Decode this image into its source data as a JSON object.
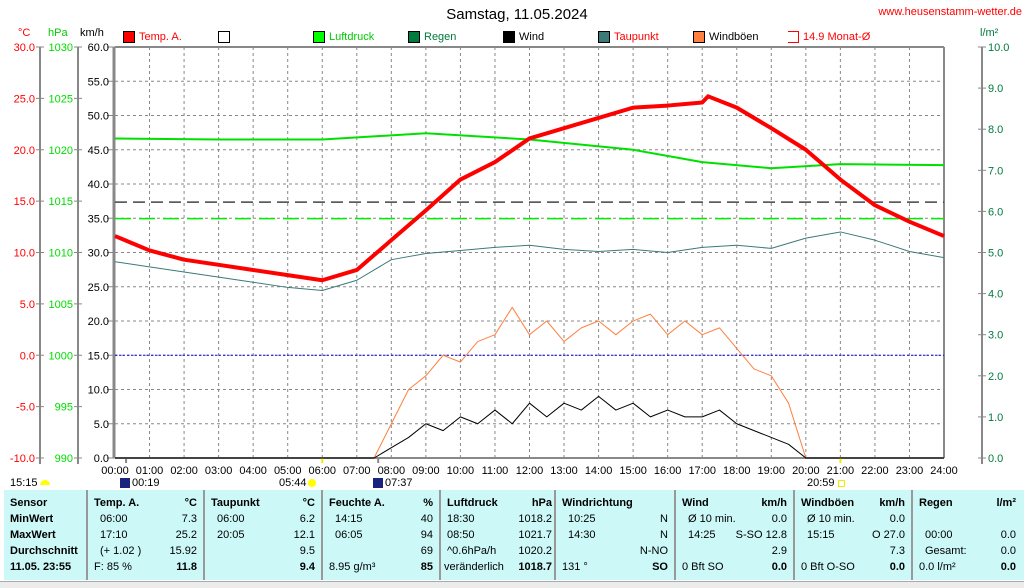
{
  "title": "Samstag, 11.05.2024",
  "site": "www.heusenstamm-wetter.de",
  "units": {
    "temp": "°C",
    "pressure": "hPa",
    "wind": "km/h",
    "rain": "l/m²"
  },
  "legend": [
    {
      "label": "Temp. A.",
      "color": "#ff0000",
      "text_color": "#ff0000"
    },
    {
      "label": "",
      "color": "#ffffff",
      "text_color": "#000000"
    },
    {
      "label": "Luftdruck",
      "color": "#00ff00",
      "text_color": "#00cc00"
    },
    {
      "label": "Regen",
      "color": "#007a3d",
      "text_color": "#007a3d"
    },
    {
      "label": "Wind",
      "color": "#000000",
      "text_color": "#000000"
    },
    {
      "label": "Taupunkt",
      "color": "#3c7a78",
      "text_color": "#ff0000"
    },
    {
      "label": "Windböen",
      "color": "#ff8040",
      "text_color": "#000000"
    },
    {
      "label": "14.9 Monat-Ø",
      "color": "#ff0000",
      "text_color": "#ff0000"
    }
  ],
  "astro": {
    "now": "15:15",
    "moon1": "00:19",
    "sunrise": "05:44",
    "moon2": "07:37",
    "sunset": "20:59"
  },
  "chart_data": {
    "type": "line",
    "x_ticks": [
      "00:00",
      "01:00",
      "02:00",
      "03:00",
      "04:00",
      "05:00",
      "06:00",
      "07:00",
      "08:00",
      "09:00",
      "10:00",
      "11:00",
      "12:00",
      "13:00",
      "14:00",
      "15:00",
      "16:00",
      "17:00",
      "18:00",
      "19:00",
      "20:00",
      "21:00",
      "22:00",
      "23:00",
      "24:00"
    ],
    "axes": {
      "temp": {
        "ylim": [
          -10,
          30
        ],
        "ticks": [
          "30.0",
          "25.0",
          "20.0",
          "15.0",
          "10.0",
          "5.0",
          "0.0",
          "-5.0",
          "-10.0"
        ]
      },
      "pressure": {
        "ylim": [
          990,
          1030
        ],
        "ticks": [
          "1030",
          "1025",
          "1020",
          "1015",
          "1010",
          "1005",
          "1000",
          "995",
          "990"
        ]
      },
      "wind": {
        "ylim": [
          0,
          60
        ],
        "ticks": [
          "60.0",
          "55.0",
          "50.0",
          "45.0",
          "40.0",
          "35.0",
          "30.0",
          "25.0",
          "20.0",
          "15.0",
          "10.0",
          "5.0",
          "0.0"
        ]
      },
      "rain": {
        "ylim": [
          0,
          10
        ],
        "ticks": [
          "10.0",
          "9.0",
          "8.0",
          "7.0",
          "6.0",
          "5.0",
          "4.0",
          "3.0",
          "2.0",
          "1.0",
          "0.0"
        ]
      }
    },
    "grid": true,
    "monthly_avg_temp": 14.9,
    "reference_pressure": 1013.3,
    "series": [
      {
        "name": "Temp. A.",
        "axis": "temp",
        "color": "#ff0000",
        "hours": [
          0,
          1,
          2,
          3,
          4,
          5,
          6,
          7,
          8,
          9,
          10,
          11,
          12,
          13,
          14,
          15,
          16,
          17,
          17.17,
          18,
          19,
          20,
          21,
          22,
          23,
          24
        ],
        "values": [
          11.6,
          10.2,
          9.3,
          8.8,
          8.3,
          7.8,
          7.3,
          8.3,
          11.2,
          14.1,
          17.1,
          18.8,
          21.1,
          22.1,
          23.1,
          24.1,
          24.3,
          24.6,
          25.2,
          24.1,
          22.1,
          20.0,
          17.1,
          14.6,
          13.0,
          11.6
        ]
      },
      {
        "name": "Taupunkt",
        "axis": "temp",
        "color": "#3c7a78",
        "hours": [
          0,
          1,
          2,
          3,
          4,
          5,
          6,
          7,
          8,
          9,
          10,
          11,
          12,
          13,
          14,
          15,
          16,
          17,
          18,
          19,
          20,
          21,
          22,
          23,
          24
        ],
        "values": [
          9.1,
          8.6,
          8.1,
          7.6,
          7.1,
          6.6,
          6.3,
          7.3,
          9.3,
          9.9,
          10.2,
          10.5,
          10.7,
          10.3,
          10.1,
          10.3,
          10.0,
          10.5,
          10.7,
          10.4,
          11.4,
          12.0,
          11.2,
          10.1,
          9.5
        ]
      },
      {
        "name": "Luftdruck",
        "axis": "pressure",
        "color": "#00e000",
        "hours": [
          0,
          3,
          6,
          9,
          12,
          15,
          17,
          19,
          21,
          24
        ],
        "values": [
          1021.1,
          1021.0,
          1021.0,
          1021.6,
          1021.0,
          1020.0,
          1018.8,
          1018.2,
          1018.6,
          1018.5
        ]
      },
      {
        "name": "Wind",
        "axis": "wind",
        "color": "#000000",
        "hours": [
          0,
          7.5,
          8,
          8.5,
          9,
          9.5,
          10,
          10.5,
          11,
          11.5,
          12,
          12.5,
          13,
          13.5,
          14,
          14.5,
          15,
          15.5,
          16,
          16.5,
          17,
          17.5,
          18,
          18.5,
          19,
          19.5,
          20,
          24
        ],
        "values": [
          0,
          0,
          1.5,
          3,
          5,
          4,
          6,
          5,
          7,
          5,
          8,
          6,
          8,
          7,
          9,
          7,
          8,
          6,
          7,
          6,
          6,
          7,
          5,
          4,
          3,
          2,
          0,
          0
        ]
      },
      {
        "name": "Windböen",
        "axis": "wind",
        "color": "#ff8040",
        "hours": [
          0,
          7.5,
          8,
          8.5,
          9,
          9.5,
          10,
          10.5,
          11,
          11.5,
          12,
          12.5,
          13,
          13.5,
          14,
          14.5,
          15,
          15.5,
          16,
          16.5,
          17,
          17.5,
          18,
          18.5,
          19,
          19.5,
          20,
          24
        ],
        "values": [
          0,
          0,
          5,
          10,
          12,
          15,
          14,
          17,
          18,
          22,
          18,
          20,
          17,
          19,
          20,
          18,
          20,
          21,
          18,
          20,
          18,
          19,
          16,
          13,
          12,
          8,
          0,
          0
        ]
      }
    ]
  },
  "table": {
    "headers": [
      [
        "Sensor",
        ""
      ],
      [
        "Temp. A.",
        "°C"
      ],
      [
        "Taupunkt",
        "°C"
      ],
      [
        "Feuchte A.",
        "%"
      ],
      [
        "Luftdruck",
        "hPa"
      ],
      [
        "Windrichtung",
        ""
      ],
      [
        "Wind",
        "km/h"
      ],
      [
        "Windböen",
        "km/h"
      ],
      [
        "Regen",
        "l/m²"
      ]
    ],
    "rows": [
      [
        "MinWert",
        [
          "06:00",
          "7.3"
        ],
        [
          "06:00",
          "6.2"
        ],
        [
          "14:15",
          "40"
        ],
        [
          "18:30",
          "1018.2"
        ],
        [
          "10:25",
          "N"
        ],
        [
          "Ø 10 min.",
          "0.0"
        ],
        [
          "Ø 10 min.",
          "0.0"
        ],
        [
          "",
          ""
        ]
      ],
      [
        "MaxWert",
        [
          "17:10",
          "25.2"
        ],
        [
          "20:05",
          "12.1"
        ],
        [
          "06:05",
          "94"
        ],
        [
          "08:50",
          "1021.7"
        ],
        [
          "14:30",
          "N"
        ],
        [
          "14:25",
          "S-SO 12.8"
        ],
        [
          "15:15",
          "O 27.0"
        ],
        [
          "00:00",
          "0.0"
        ]
      ],
      [
        "Durchschnitt",
        [
          "(+ 1.02 )",
          "15.92"
        ],
        [
          "",
          "9.5"
        ],
        [
          "",
          "69"
        ],
        [
          "^0.6hPa/h",
          "1020.2"
        ],
        [
          "",
          "N-NO"
        ],
        [
          "",
          "2.9"
        ],
        [
          "",
          "7.3"
        ],
        [
          "Gesamt:",
          "0.0"
        ]
      ],
      [
        "11.05. 23:55",
        [
          "F: 85 %",
          "11.8"
        ],
        [
          "",
          "9.4"
        ],
        [
          "8.95 g/m³",
          "85"
        ],
        [
          "veränderlich",
          "1018.7"
        ],
        [
          "131 °",
          "SO"
        ],
        [
          "0 Bft SO",
          "0.0"
        ],
        [
          "0 Bft O-SO",
          "0.0"
        ],
        [
          "0.0 l/m²",
          "0.0"
        ]
      ]
    ]
  }
}
